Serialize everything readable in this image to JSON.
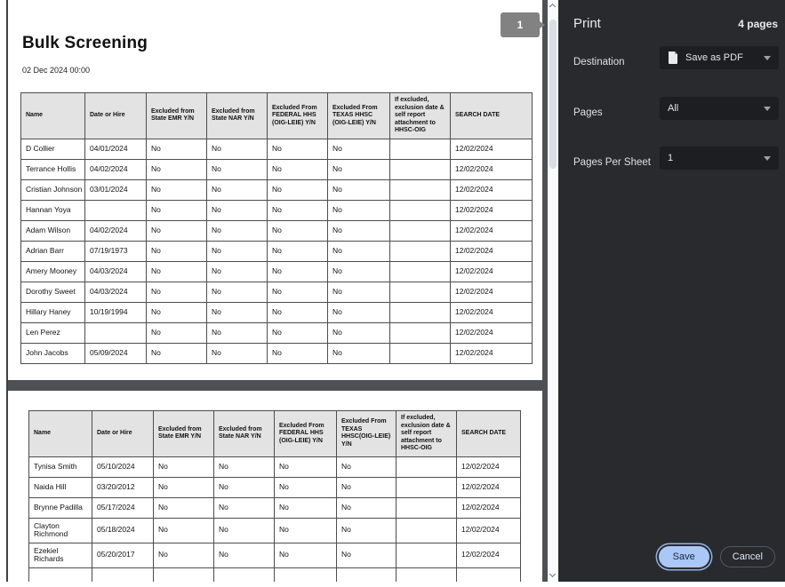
{
  "colors": {
    "panel_bg": "#292a2d",
    "save_button_bg": "#aac7f7",
    "table_header_bg": "#e3e3e3",
    "page_indicator_bg": "#828282"
  },
  "preview": {
    "page_indicator": "1"
  },
  "document": {
    "title": "Bulk Screening",
    "timestamp": "02 Dec 2024 00:00",
    "pages": [
      {
        "table": {
          "headers": [
            "Name",
            "Date or Hire",
            "Excluded from State EMR Y/N",
            "Excluded from State NAR Y/N",
            "Excluded From FEDERAL HHS (OIG-LEIE) Y/N",
            "Excluded From TEXAS HHSC (OIG-LEIE) Y/N",
            "If excluded, exclusion date & self report attachment to HHSC-OIG",
            "SEARCH DATE"
          ],
          "rows": [
            [
              "D Collier",
              "04/01/2024",
              "No",
              "No",
              "No",
              "No",
              "",
              "12/02/2024"
            ],
            [
              "Terrance Hollis",
              "04/02/2024",
              "No",
              "No",
              "No",
              "No",
              "",
              "12/02/2024"
            ],
            [
              "Cristian Johnson",
              "03/01/2024",
              "No",
              "No",
              "No",
              "No",
              "",
              "12/02/2024"
            ],
            [
              "Hannan Yoya",
              "",
              "No",
              "No",
              "No",
              "No",
              "",
              "12/02/2024"
            ],
            [
              "Adam Wilson",
              "04/02/2024",
              "No",
              "No",
              "No",
              "No",
              "",
              "12/02/2024"
            ],
            [
              "Adrian Barr",
              "07/19/1973",
              "No",
              "No",
              "No",
              "No",
              "",
              "12/02/2024"
            ],
            [
              "Amery Mooney",
              "04/03/2024",
              "No",
              "No",
              "No",
              "No",
              "",
              "12/02/2024"
            ],
            [
              "Dorothy Sweet",
              "04/03/2024",
              "No",
              "No",
              "No",
              "No",
              "",
              "12/02/2024"
            ],
            [
              "Hillary Haney",
              "10/19/1994",
              "No",
              "No",
              "No",
              "No",
              "",
              "12/02/2024"
            ],
            [
              "Len Perez",
              "",
              "No",
              "No",
              "No",
              "No",
              "",
              "12/02/2024"
            ],
            [
              "John Jacobs",
              "05/09/2024",
              "No",
              "No",
              "No",
              "No",
              "",
              "12/02/2024"
            ]
          ],
          "partial_row": false
        }
      },
      {
        "table": {
          "headers": [
            "Name",
            "Date or Hire",
            "Excluded from State EMR Y/N",
            "Excluded from State NAR Y/N",
            "Excluded From FEDERAL HHS (OIG-LEIE) Y/N",
            "Excluded From TEXAS HHSC(OIG-LEIE) Y/N",
            "If excluded, exclusion date & self report attachment to HHSC-OIG",
            "SEARCH DATE"
          ],
          "rows": [
            [
              "Tynisa Smith",
              "05/10/2024",
              "No",
              "No",
              "No",
              "No",
              "",
              "12/02/2024"
            ],
            [
              "Naida Hill",
              "03/20/2012",
              "No",
              "No",
              "No",
              "No",
              "",
              "12/02/2024"
            ],
            [
              "Brynne Padilla",
              "05/17/2024",
              "No",
              "No",
              "No",
              "No",
              "",
              "12/02/2024"
            ],
            [
              "Clayton Richmond",
              "05/18/2024",
              "No",
              "No",
              "No",
              "No",
              "",
              "12/02/2024"
            ],
            [
              "Ezekiel Richards",
              "05/20/2017",
              "No",
              "No",
              "No",
              "No",
              "",
              "12/02/2024"
            ]
          ],
          "partial_row": true
        }
      }
    ]
  },
  "print_panel": {
    "title": "Print",
    "page_count": "4 pages",
    "fields": [
      {
        "label": "Destination",
        "value": "Save as PDF",
        "icon": "pdf-file-icon"
      },
      {
        "label": "Pages",
        "value": "All"
      },
      {
        "label": "Pages Per Sheet",
        "value": "1"
      }
    ],
    "save_label": "Save",
    "cancel_label": "Cancel"
  }
}
